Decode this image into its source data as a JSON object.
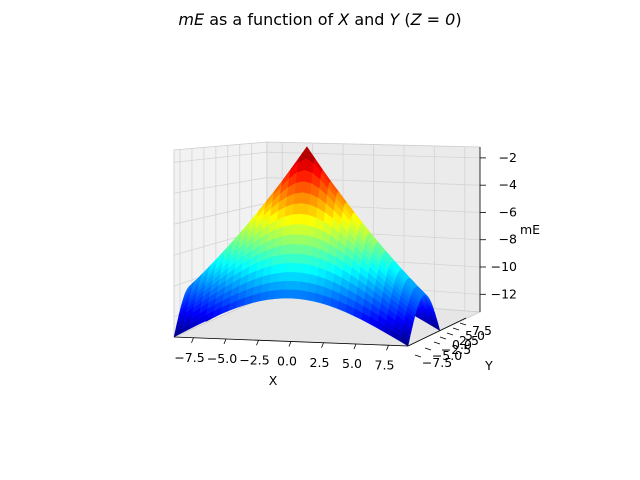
{
  "chart_data": {
    "type": "surface3d",
    "title": {
      "var": "mE",
      "mid": " as a function of ",
      "x": "X",
      "and": " and ",
      "y": "Y",
      "cond_open": " (",
      "cond": "Z = 0",
      "cond_close": ")"
    },
    "xlabel": "X",
    "ylabel": "Y",
    "zlabel": "mE",
    "xticks": [
      "−7.5",
      "−5.0",
      "−2.5",
      "0.0",
      "2.5",
      "5.0",
      "7.5"
    ],
    "yticks": [
      "−7.5",
      "−5.0",
      "−2.5",
      "0.0",
      "2.5",
      "5.0",
      "7.5"
    ],
    "zticks": [
      "−2",
      "−4",
      "−6",
      "−8",
      "−10",
      "−12"
    ],
    "xlim": [
      -9,
      9
    ],
    "ylim": [
      -9,
      9
    ],
    "zlim": [
      -13.3,
      -1.2
    ],
    "colormap": "jet",
    "grid": true,
    "view": "low elevation, nearly face-on",
    "surface": {
      "grid_x": [
        -9,
        -8.4,
        -7.8,
        -7.2,
        -6.6,
        -6,
        -5.4,
        -4.8,
        -4.2,
        -3.6,
        -3,
        -2.4,
        -1.8,
        -1.2,
        -0.6,
        0,
        0.6,
        1.2,
        1.8,
        2.4,
        3,
        3.6,
        4.2,
        4.8,
        5.4,
        6,
        6.6,
        7.2,
        7.8,
        8.4,
        9
      ],
      "grid_y": [
        -9,
        -8.4,
        -7.8,
        -7.2,
        -6.6,
        -6,
        -5.4,
        -4.8,
        -4.2,
        -3.6,
        -3,
        -2.4,
        -1.8,
        -1.2,
        -0.6,
        0,
        0.6,
        1.2,
        1.8,
        2.4,
        3,
        3.6,
        4.2,
        4.8,
        5.4,
        6,
        6.6,
        7.2,
        7.8,
        8.4,
        9
      ],
      "peak_at": [
        0,
        0
      ],
      "peak_value": -1.2,
      "edge_midpoint_value": -10.5,
      "corner_value": -13.3
    }
  }
}
